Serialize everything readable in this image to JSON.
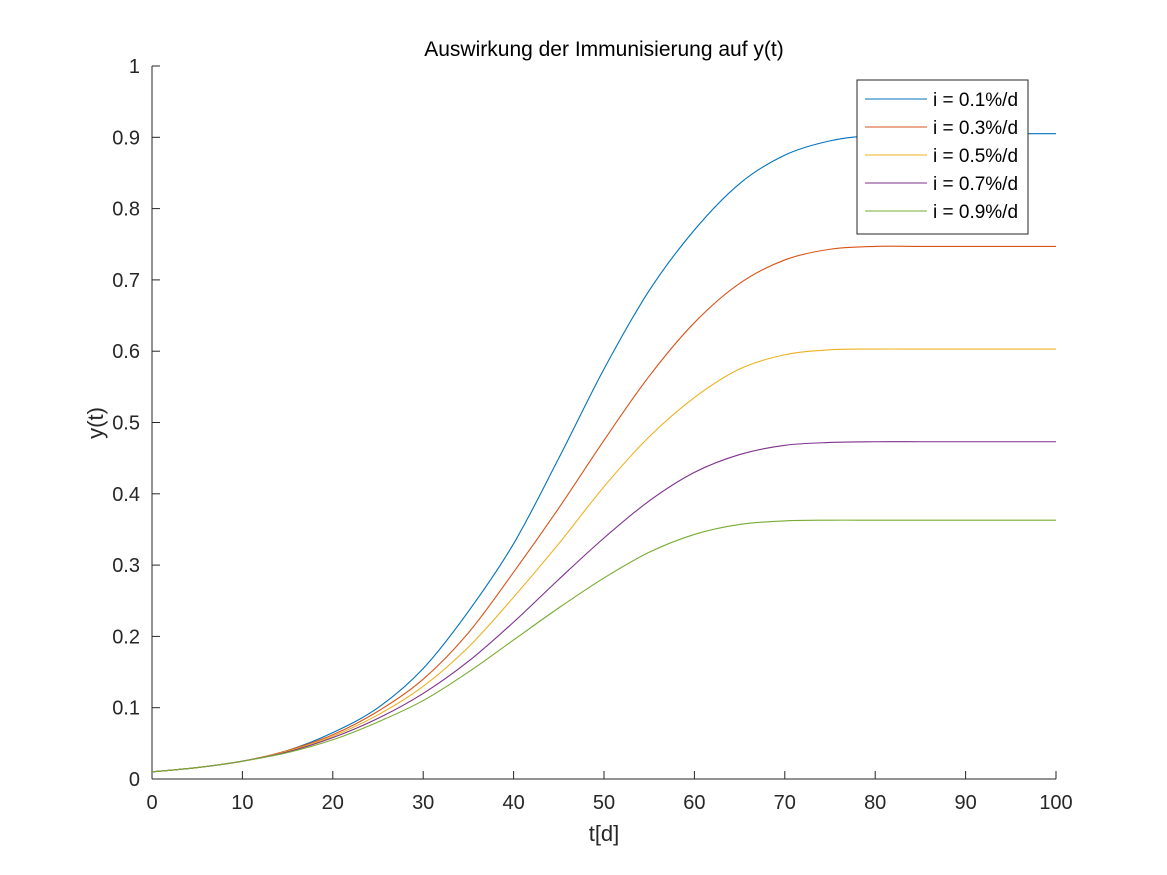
{
  "chart_data": {
    "type": "line",
    "title": "Auswirkung der Immunisierung auf y(t)",
    "xlabel": "t[d]",
    "ylabel": "y(t)",
    "xlim": [
      0,
      100
    ],
    "ylim": [
      0,
      1
    ],
    "xticks": [
      0,
      10,
      20,
      30,
      40,
      50,
      60,
      70,
      80,
      90,
      100
    ],
    "yticks": [
      0,
      0.1,
      0.2,
      0.3,
      0.4,
      0.5,
      0.6,
      0.7,
      0.8,
      0.9,
      1
    ],
    "ytick_labels": [
      "0",
      "0.1",
      "0.2",
      "0.3",
      "0.4",
      "0.5",
      "0.6",
      "0.7",
      "0.8",
      "0.9",
      "1"
    ],
    "grid": false,
    "legend_position": "top-right",
    "x": [
      0,
      5,
      10,
      15,
      20,
      25,
      30,
      35,
      40,
      45,
      50,
      55,
      60,
      65,
      70,
      75,
      80,
      85,
      90,
      95,
      100
    ],
    "series": [
      {
        "name": "i = 0.1%/d",
        "color": "#0072BD",
        "values": [
          0.01,
          0.016,
          0.025,
          0.04,
          0.065,
          0.1,
          0.155,
          0.235,
          0.33,
          0.45,
          0.575,
          0.685,
          0.77,
          0.835,
          0.875,
          0.895,
          0.903,
          0.905,
          0.905,
          0.905,
          0.905
        ]
      },
      {
        "name": "i = 0.3%/d",
        "color": "#D95319",
        "values": [
          0.01,
          0.016,
          0.025,
          0.04,
          0.062,
          0.095,
          0.14,
          0.205,
          0.29,
          0.38,
          0.475,
          0.565,
          0.64,
          0.695,
          0.728,
          0.743,
          0.747,
          0.747,
          0.747,
          0.747,
          0.747
        ]
      },
      {
        "name": "i = 0.5%/d",
        "color": "#EDB120",
        "values": [
          0.01,
          0.016,
          0.025,
          0.039,
          0.06,
          0.09,
          0.13,
          0.185,
          0.255,
          0.33,
          0.41,
          0.48,
          0.535,
          0.575,
          0.595,
          0.602,
          0.603,
          0.603,
          0.603,
          0.603,
          0.603
        ]
      },
      {
        "name": "i = 0.7%/d",
        "color": "#7E2F8E",
        "values": [
          0.01,
          0.016,
          0.025,
          0.038,
          0.058,
          0.085,
          0.12,
          0.165,
          0.22,
          0.28,
          0.338,
          0.39,
          0.43,
          0.455,
          0.468,
          0.472,
          0.473,
          0.473,
          0.473,
          0.473,
          0.473
        ]
      },
      {
        "name": "i = 0.9%/d",
        "color": "#77AC30",
        "values": [
          0.01,
          0.016,
          0.025,
          0.037,
          0.055,
          0.08,
          0.11,
          0.15,
          0.195,
          0.24,
          0.282,
          0.318,
          0.343,
          0.357,
          0.362,
          0.363,
          0.363,
          0.363,
          0.363,
          0.363,
          0.363
        ]
      }
    ]
  }
}
